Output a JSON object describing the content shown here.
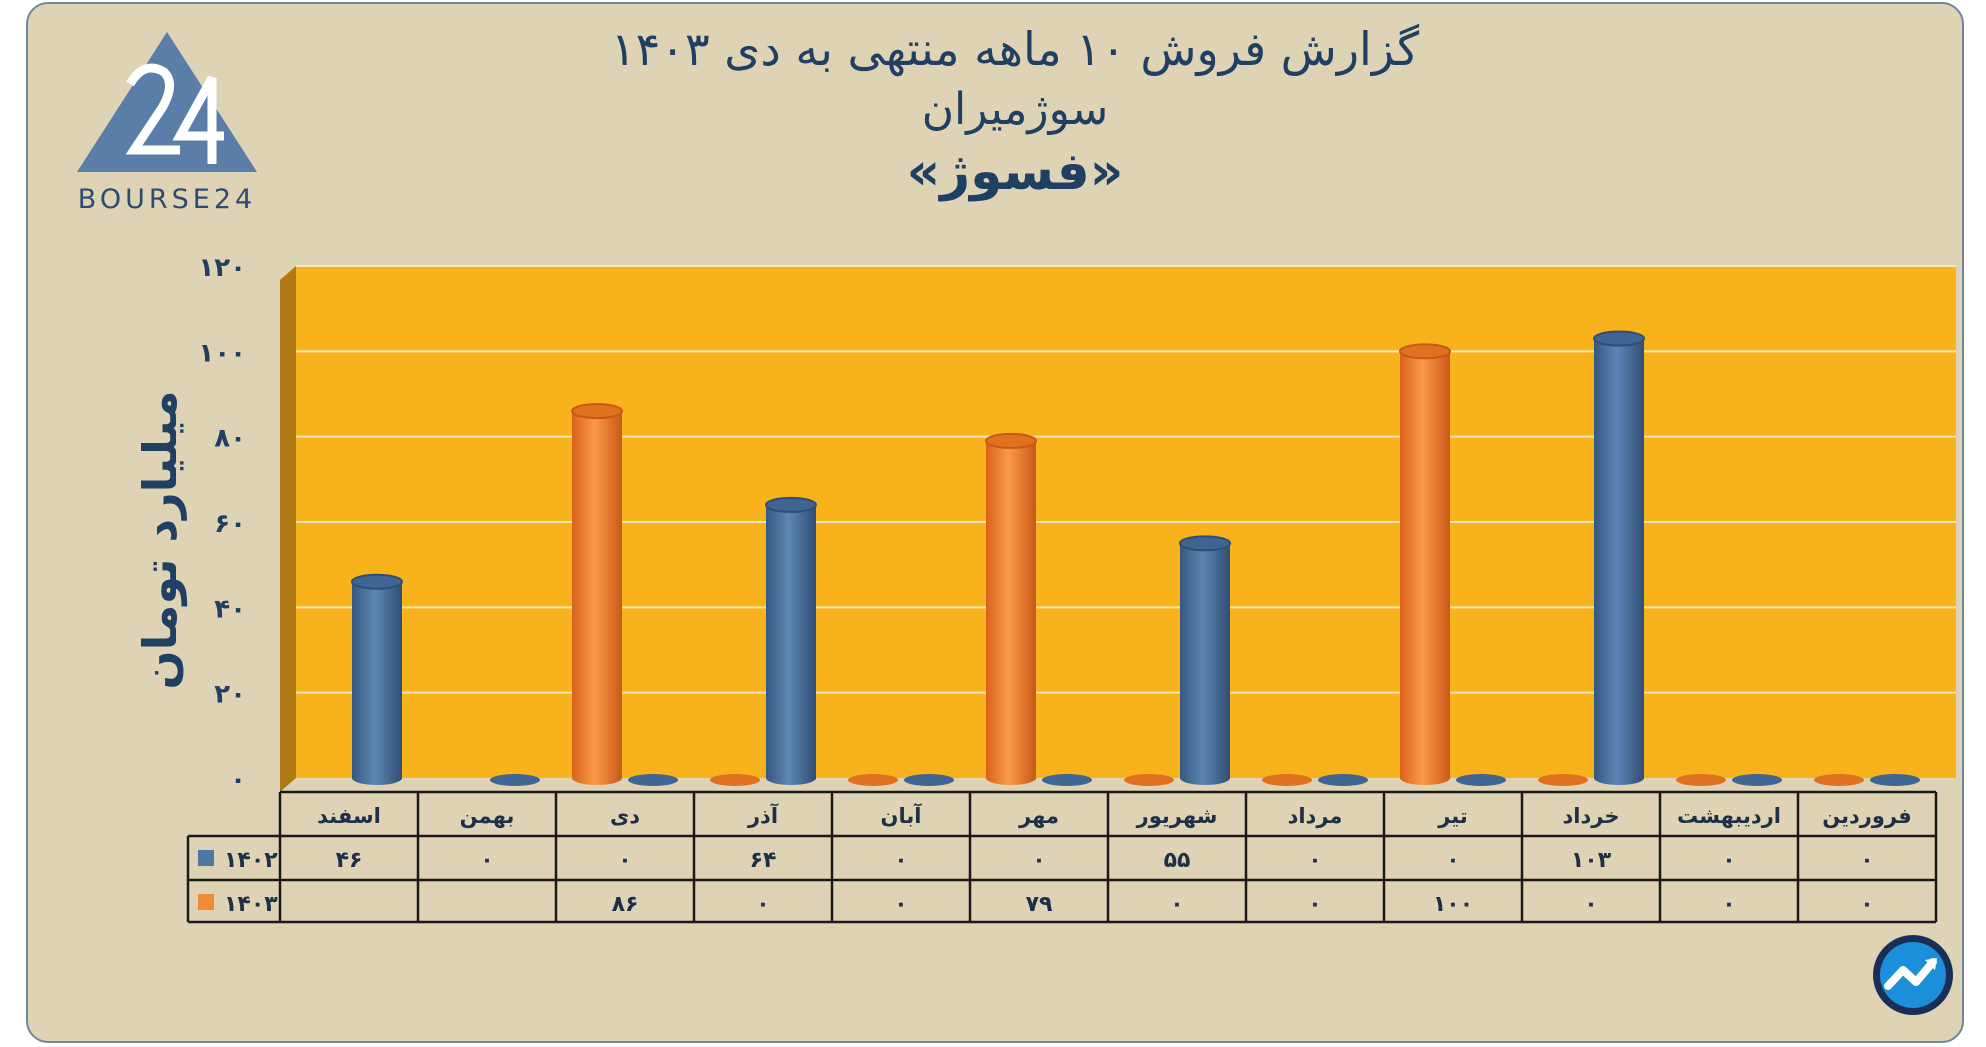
{
  "header": {
    "title_line1": "گزارش  فروش ۱۰ ماهه منتهی به دی ۱۴۰۳",
    "title_line2": "سوژمیران",
    "title_line3": "«فسوژ»",
    "brand": "BOURSE24"
  },
  "colors": {
    "background": "#ded3b5",
    "plot_area": "#f8b31c",
    "series_1402": "#4e77a8",
    "series_1403": "#f28a35",
    "text": "#1f3f63"
  },
  "chart_data": {
    "type": "bar",
    "title": "گزارش  فروش ۱۰ ماهه منتهی به دی ۱۴۰۳",
    "subtitle": "سوژمیران «فسوژ»",
    "ylabel": "میلیارد تومان",
    "ylim": [
      0,
      120
    ],
    "yticks": [
      "۰",
      "۲۰",
      "۴۰",
      "۶۰",
      "۸۰",
      "۱۰۰",
      "۱۲۰"
    ],
    "ytick_values": [
      0,
      20,
      40,
      60,
      80,
      100,
      120
    ],
    "categories": [
      "فروردین",
      "اردیبهشت",
      "خرداد",
      "تیر",
      "مرداد",
      "شهریور",
      "مهر",
      "آبان",
      "آذر",
      "دی",
      "بهمن",
      "اسفند"
    ],
    "series": [
      {
        "name": "۱۴۰۲",
        "color": "#4e77a8",
        "values": [
          0,
          0,
          103,
          0,
          0,
          55,
          0,
          0,
          64,
          0,
          0,
          46
        ],
        "labels": [
          "۰",
          "۰",
          "۱۰۳",
          "۰",
          "۰",
          "۵۵",
          "۰",
          "۰",
          "۶۴",
          "۰",
          "۰",
          "۴۶"
        ]
      },
      {
        "name": "۱۴۰۳",
        "color": "#f28a35",
        "values": [
          0,
          0,
          0,
          100,
          0,
          0,
          79,
          0,
          0,
          86,
          null,
          null
        ],
        "labels": [
          "۰",
          "۰",
          "۰",
          "۱۰۰",
          "۰",
          "۰",
          "۷۹",
          "۰",
          "۰",
          "۸۶",
          "",
          ""
        ]
      }
    ],
    "grid": true,
    "legend": "data-table-left"
  }
}
